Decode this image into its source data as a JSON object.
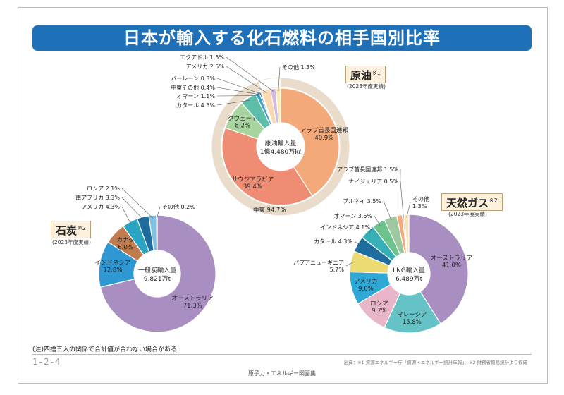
{
  "title": "日本が輸入する化石燃料の相手国別比率",
  "note": "(注)四捨五入の関係で合計値が合わない場合がある",
  "page_number": "1-2-4",
  "source": "出典：※1 資源エネルギー庁「資源・エネルギー統計年報」、※2 財務省貿易統計より作成",
  "footer": "原子力・エネルギー図面集",
  "colors": {
    "title_bg": "#1e71b8",
    "oil_outer_ring": "#e9dccb",
    "gas_outer": "#d8c9a6"
  },
  "chart_data": [
    {
      "type": "pie",
      "id": "oil",
      "title": "原油",
      "title_note": "※1",
      "year": "(2023年度実績)",
      "center_label": [
        "原油輸入量",
        "1億4,480万kℓ"
      ],
      "group_label": "中東 94.7%",
      "slices": [
        {
          "name": "アラブ首長国連邦",
          "value": 40.9,
          "label": "アラブ首長国連邦\n40.9%",
          "color": "#f3a97a",
          "label_mode": "inside"
        },
        {
          "name": "サウジアラビア",
          "value": 39.4,
          "label": "サウジアラビア\n39.4%",
          "color": "#ef8c74",
          "label_mode": "inside"
        },
        {
          "name": "クウェート",
          "value": 8.2,
          "label": "クウェート\n8.2%",
          "color": "#a8d4a0",
          "label_mode": "inside"
        },
        {
          "name": "カタール",
          "value": 4.5,
          "label": "カタール 4.5%",
          "color": "#5dbeaa",
          "label_mode": "outside"
        },
        {
          "name": "オマーン",
          "value": 1.1,
          "label": "オマーン 1.1%",
          "color": "#3ea2c7",
          "label_mode": "outside"
        },
        {
          "name": "中東その他",
          "value": 0.4,
          "label": "中東その他 0.4%",
          "color": "#2d5f8a",
          "label_mode": "outside"
        },
        {
          "name": "バーレーン",
          "value": 0.3,
          "label": "バーレーン 0.3%",
          "color": "#e87b6c",
          "label_mode": "outside"
        },
        {
          "name": "アメリカ",
          "value": 2.5,
          "label": "アメリカ 2.5%",
          "color": "#f9d9b0",
          "label_mode": "outside"
        },
        {
          "name": "エクアドル",
          "value": 1.5,
          "label": "エクアドル 1.5%",
          "color": "#d5b9e0",
          "label_mode": "outside"
        },
        {
          "name": "その他",
          "value": 1.3,
          "label": "その他 1.3%",
          "color": "#f6edb0",
          "label_mode": "outside"
        }
      ]
    },
    {
      "type": "pie",
      "id": "coal",
      "title": "石炭",
      "title_note": "※2",
      "year": "(2023年度実績)",
      "center_label": [
        "一般炭輸入量",
        "9,821万t"
      ],
      "slices": [
        {
          "name": "オーストラリア",
          "value": 71.3,
          "label": "オーストラリア\n71.3%",
          "color": "#a98ec2",
          "label_mode": "inside"
        },
        {
          "name": "インドネシア",
          "value": 12.8,
          "label": "インドネシア\n12.8%",
          "color": "#2f97d2",
          "label_mode": "inside"
        },
        {
          "name": "カナダ",
          "value": 6.0,
          "label": "カナダ\n6.0%",
          "color": "#c07b4e",
          "label_mode": "inside"
        },
        {
          "name": "アメリカ",
          "value": 4.3,
          "label": "アメリカ 4.3%",
          "color": "#29a4c2",
          "label_mode": "outside"
        },
        {
          "name": "南アフリカ",
          "value": 3.3,
          "label": "南アフリカ 3.3%",
          "color": "#1f6c9e",
          "label_mode": "outside"
        },
        {
          "name": "ロシア",
          "value": 2.1,
          "label": "ロシア 2.1%",
          "color": "#7fc0e0",
          "label_mode": "outside"
        },
        {
          "name": "その他",
          "value": 0.2,
          "label": "その他 0.2%",
          "color": "#f0c6d4",
          "label_mode": "outside"
        }
      ]
    },
    {
      "type": "pie",
      "id": "gas",
      "title": "天然ガス",
      "title_note": "※2",
      "year": "(2023年度実績)",
      "center_label": [
        "LNG輸入量",
        "6,489万t"
      ],
      "slices": [
        {
          "name": "オーストラリア",
          "value": 41.0,
          "label": "オーストラリア\n41.0%",
          "color": "#a98ec2",
          "label_mode": "inside"
        },
        {
          "name": "マレーシア",
          "value": 15.8,
          "label": "マレーシア\n15.8%",
          "color": "#65c3c8",
          "label_mode": "inside"
        },
        {
          "name": "ロシア",
          "value": 9.7,
          "label": "ロシア\n9.7%",
          "color": "#e8b6c8",
          "label_mode": "inside"
        },
        {
          "name": "アメリカ",
          "value": 9.0,
          "label": "アメリカ\n9.0%",
          "color": "#2fa8d6",
          "label_mode": "inside"
        },
        {
          "name": "パプアニューギニア",
          "value": 5.7,
          "label": "パプアニューギニア\n5.7%",
          "color": "#ecdb73",
          "label_mode": "outside"
        },
        {
          "name": "カタール",
          "value": 4.3,
          "label": "カタール 4.3%",
          "color": "#1d6e9f",
          "label_mode": "outside"
        },
        {
          "name": "インドネシア",
          "value": 4.1,
          "label": "インドネシア 4.1%",
          "color": "#36b0b6",
          "label_mode": "outside"
        },
        {
          "name": "オマーン",
          "value": 3.6,
          "label": "オマーン 3.6%",
          "color": "#6cc48c",
          "label_mode": "outside"
        },
        {
          "name": "ブルネイ",
          "value": 3.5,
          "label": "ブルネイ 3.5%",
          "color": "#9ec8a0",
          "label_mode": "outside"
        },
        {
          "name": "アラブ首長国連邦",
          "value": 1.5,
          "label": "アラブ首長国連邦 1.5%",
          "color": "#f3a97a",
          "label_mode": "outside"
        },
        {
          "name": "ナイジェリア",
          "value": 0.5,
          "label": "ナイジェリア 0.5%",
          "color": "#f2cfe0",
          "label_mode": "outside"
        },
        {
          "name": "その他",
          "value": 1.3,
          "label": "その他\n1.3%",
          "color": "#f7e6b8",
          "label_mode": "outside"
        }
      ]
    }
  ]
}
